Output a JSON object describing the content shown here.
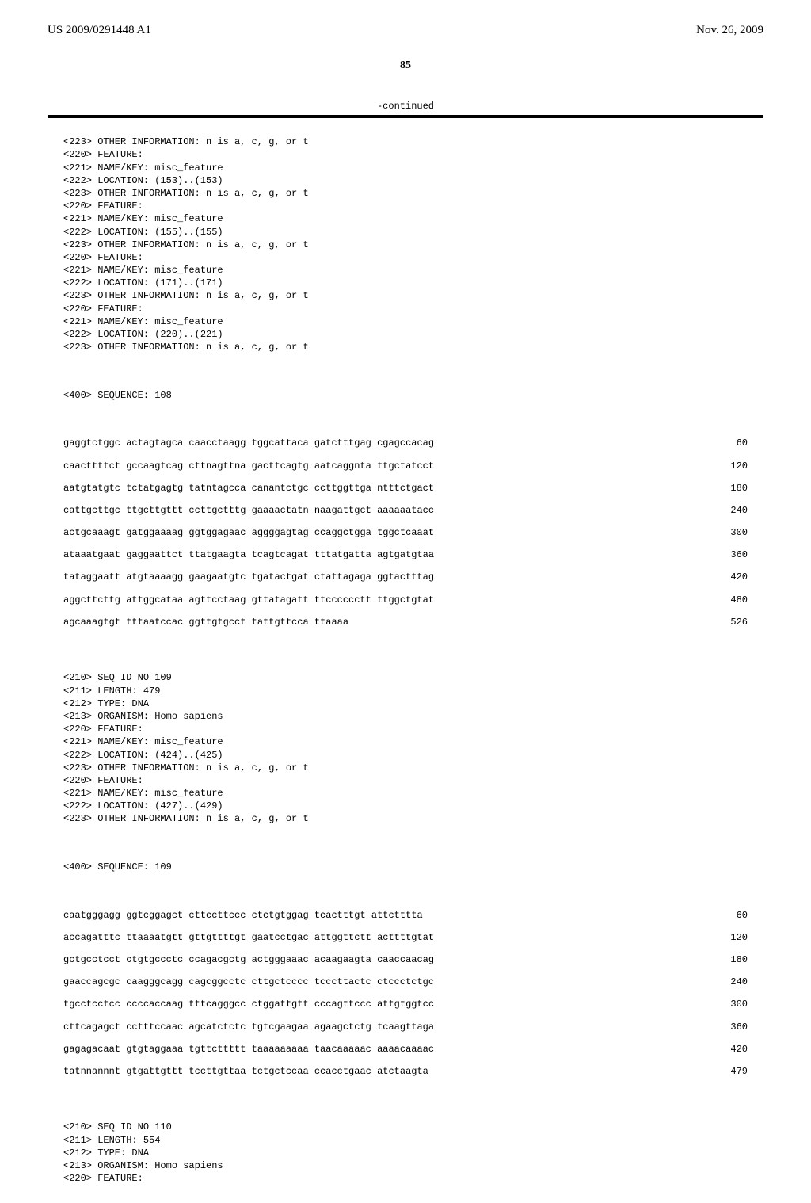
{
  "header": {
    "pub_number": "US 2009/0291448 A1",
    "pub_date": "Nov. 26, 2009"
  },
  "page_number": "85",
  "continued_label": "-continued",
  "block1": {
    "features": [
      "<223> OTHER INFORMATION: n is a, c, g, or t",
      "<220> FEATURE:",
      "<221> NAME/KEY: misc_feature",
      "<222> LOCATION: (153)..(153)",
      "<223> OTHER INFORMATION: n is a, c, g, or t",
      "<220> FEATURE:",
      "<221> NAME/KEY: misc_feature",
      "<222> LOCATION: (155)..(155)",
      "<223> OTHER INFORMATION: n is a, c, g, or t",
      "<220> FEATURE:",
      "<221> NAME/KEY: misc_feature",
      "<222> LOCATION: (171)..(171)",
      "<223> OTHER INFORMATION: n is a, c, g, or t",
      "<220> FEATURE:",
      "<221> NAME/KEY: misc_feature",
      "<222> LOCATION: (220)..(221)",
      "<223> OTHER INFORMATION: n is a, c, g, or t"
    ],
    "sequence_header": "<400> SEQUENCE: 108",
    "sequence": [
      {
        "seq": "gaggtctggc actagtagca caacctaagg tggcattaca gatctttgag cgagccacag",
        "num": "60"
      },
      {
        "seq": "caacttttct gccaagtcag cttnagttna gacttcagtg aatcaggnta ttgctatcct",
        "num": "120"
      },
      {
        "seq": "aatgtatgtc tctatgagtg tatntagcca canantctgc ccttggttga ntttctgact",
        "num": "180"
      },
      {
        "seq": "cattgcttgc ttgcttgttt ccttgctttg gaaaactatn naagattgct aaaaaatacc",
        "num": "240"
      },
      {
        "seq": "actgcaaagt gatggaaaag ggtggagaac aggggagtag ccaggctgga tggctcaaat",
        "num": "300"
      },
      {
        "seq": "ataaatgaat gaggaattct ttatgaagta tcagtcagat tttatgatta agtgatgtaa",
        "num": "360"
      },
      {
        "seq": "tataggaatt atgtaaaagg gaagaatgtc tgatactgat ctattagaga ggtactttag",
        "num": "420"
      },
      {
        "seq": "aggcttcttg attggcataa agttcctaag gttatagatt ttcccccctt ttggctgtat",
        "num": "480"
      },
      {
        "seq": "agcaaagtgt tttaatccac ggttgtgcct tattgttcca ttaaaa",
        "num": "526"
      }
    ]
  },
  "block2": {
    "features": [
      "<210> SEQ ID NO 109",
      "<211> LENGTH: 479",
      "<212> TYPE: DNA",
      "<213> ORGANISM: Homo sapiens",
      "<220> FEATURE:",
      "<221> NAME/KEY: misc_feature",
      "<222> LOCATION: (424)..(425)",
      "<223> OTHER INFORMATION: n is a, c, g, or t",
      "<220> FEATURE:",
      "<221> NAME/KEY: misc_feature",
      "<222> LOCATION: (427)..(429)",
      "<223> OTHER INFORMATION: n is a, c, g, or t"
    ],
    "sequence_header": "<400> SEQUENCE: 109",
    "sequence": [
      {
        "seq": "caatgggagg ggtcggagct cttccttccc ctctgtggag tcactttgt attctttta",
        "num": "60"
      },
      {
        "seq": "accagatttc ttaaaatgtt gttgttttgt gaatcctgac attggttctt acttttgtat",
        "num": "120"
      },
      {
        "seq": "gctgcctcct ctgtgccctc ccagacgctg actgggaaac acaagaagta caaccaacag",
        "num": "180"
      },
      {
        "seq": "gaaccagcgc caagggcagg cagcggcctc cttgctcccc tcccttactc ctccctctgc",
        "num": "240"
      },
      {
        "seq": "tgcctcctcc ccccaccaag tttcagggcc ctggattgtt cccagttccc attgtggtcc",
        "num": "300"
      },
      {
        "seq": "cttcagagct cctttccaac agcatctctc tgtcgaagaa agaagctctg tcaagttaga",
        "num": "360"
      },
      {
        "seq": "gagagacaat gtgtaggaaa tgttcttttt taaaaaaaaa taacaaaaac aaaacaaaac",
        "num": "420"
      },
      {
        "seq": "tatnnannnt gtgattgttt tccttgttaa tctgctccaa ccacctgaac atctaagta",
        "num": "479"
      }
    ]
  },
  "block3": {
    "features": [
      "<210> SEQ ID NO 110",
      "<211> LENGTH: 554",
      "<212> TYPE: DNA",
      "<213> ORGANISM: Homo sapiens",
      "<220> FEATURE:"
    ]
  },
  "style": {
    "body_width": 1024,
    "body_height": 1320,
    "background": "#ffffff",
    "mono_font": "Courier New",
    "serif_font": "Times New Roman",
    "header_fontsize": 15,
    "pagenum_fontsize": 14,
    "mono_fontsize": 12,
    "line_height": 1.35,
    "text_color": "#000000"
  }
}
